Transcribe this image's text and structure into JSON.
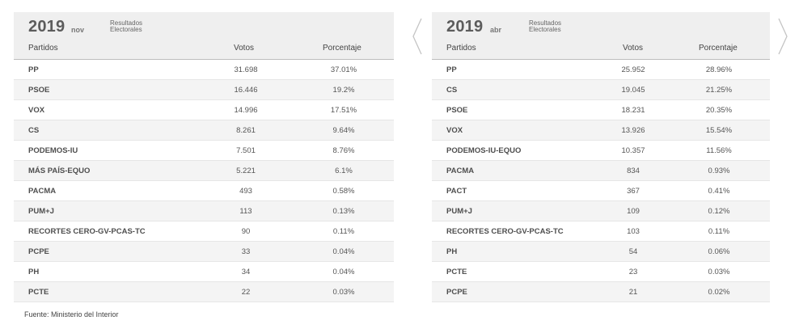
{
  "panels": [
    {
      "year": "2019",
      "month": "nov",
      "caption_line1": "Resultados",
      "caption_line2": "Electorales",
      "headers": {
        "party": "Partidos",
        "votes": "Votos",
        "pct": "Porcentaje"
      },
      "rows": [
        {
          "party": "PP",
          "votes": "31.698",
          "pct": "37.01%"
        },
        {
          "party": "PSOE",
          "votes": "16.446",
          "pct": "19.2%"
        },
        {
          "party": "VOX",
          "votes": "14.996",
          "pct": "17.51%"
        },
        {
          "party": "CS",
          "votes": "8.261",
          "pct": "9.64%"
        },
        {
          "party": "PODEMOS-IU",
          "votes": "7.501",
          "pct": "8.76%"
        },
        {
          "party": "MÁS PAÍS-EQUO",
          "votes": "5.221",
          "pct": "6.1%"
        },
        {
          "party": "PACMA",
          "votes": "493",
          "pct": "0.58%"
        },
        {
          "party": "PUM+J",
          "votes": "113",
          "pct": "0.13%"
        },
        {
          "party": "RECORTES CERO-GV-PCAS-TC",
          "votes": "90",
          "pct": "0.11%"
        },
        {
          "party": "PCPE",
          "votes": "33",
          "pct": "0.04%"
        },
        {
          "party": "PH",
          "votes": "34",
          "pct": "0.04%"
        },
        {
          "party": "PCTE",
          "votes": "22",
          "pct": "0.03%"
        }
      ]
    },
    {
      "year": "2019",
      "month": "abr",
      "caption_line1": "Resultados",
      "caption_line2": "Electorales",
      "headers": {
        "party": "Partidos",
        "votes": "Votos",
        "pct": "Porcentaje"
      },
      "rows": [
        {
          "party": "PP",
          "votes": "25.952",
          "pct": "28.96%"
        },
        {
          "party": "CS",
          "votes": "19.045",
          "pct": "21.25%"
        },
        {
          "party": "PSOE",
          "votes": "18.231",
          "pct": "20.35%"
        },
        {
          "party": "VOX",
          "votes": "13.926",
          "pct": "15.54%"
        },
        {
          "party": "PODEMOS-IU-EQUO",
          "votes": "10.357",
          "pct": "11.56%"
        },
        {
          "party": "PACMA",
          "votes": "834",
          "pct": "0.93%"
        },
        {
          "party": "PACT",
          "votes": "367",
          "pct": "0.41%"
        },
        {
          "party": "PUM+J",
          "votes": "109",
          "pct": "0.12%"
        },
        {
          "party": "RECORTES CERO-GV-PCAS-TC",
          "votes": "103",
          "pct": "0.11%"
        },
        {
          "party": "PH",
          "votes": "54",
          "pct": "0.06%"
        },
        {
          "party": "PCTE",
          "votes": "23",
          "pct": "0.03%"
        },
        {
          "party": "PCPE",
          "votes": "21",
          "pct": "0.02%"
        }
      ]
    }
  ],
  "nav": {
    "prev_icon": "chevron-left-icon",
    "next_icon": "chevron-right-icon"
  },
  "source": "Fuente: Ministerio del Interior"
}
